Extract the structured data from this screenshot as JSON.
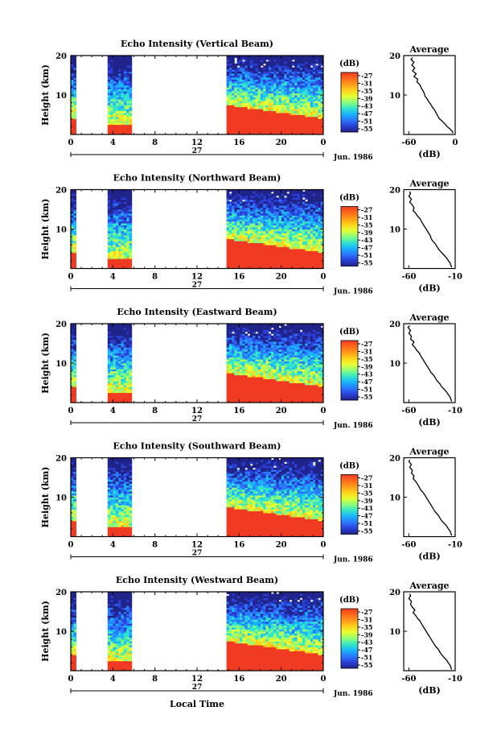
{
  "figure": {
    "xlabel": "Local Time",
    "date_label": "Jun. 1986",
    "day_label": "27",
    "colorbar_unit": "(dB)",
    "colorbar_ticks": [
      "-27",
      "-31",
      "-35",
      "-39",
      "-43",
      "-47",
      "-51",
      "-55"
    ],
    "colorbar_colors": [
      "#f03a22",
      "#ff6a1a",
      "#ff9a1a",
      "#ffd21a",
      "#e6ff33",
      "#8cff7a",
      "#33e6c8",
      "#1ab4ff",
      "#2a78ff",
      "#2a3fd6",
      "#20248a"
    ],
    "colors": {
      "low": "#20248a",
      "mid": "#33e6c8",
      "high": "#f03a22"
    }
  },
  "chart_data": [
    {
      "type": "heatmap",
      "title": "Echo Intensity (Vertical Beam)",
      "xlabel": "",
      "ylabel": "Height (km)",
      "x_ticks": [
        "0",
        "4",
        "8",
        "12",
        "16",
        "20",
        "0"
      ],
      "y_ticks": [
        "20",
        "10"
      ],
      "xlim": [
        0,
        24
      ],
      "ylim": [
        0,
        20
      ],
      "unit": "dB",
      "data_segments_hours": [
        [
          0,
          0.5
        ],
        [
          3.5,
          5.8
        ],
        [
          14.8,
          24
        ]
      ],
      "average_profile": {
        "title": "Average",
        "xlabel": "(dB)",
        "x_ticks": [
          "-60",
          "0"
        ],
        "y_ticks": [
          "20",
          "10"
        ],
        "xlim": [
          -70,
          0
        ],
        "x": [
          -58,
          -60,
          -56,
          -59,
          -55,
          -58,
          -53,
          -56,
          -51,
          -52,
          -48,
          -46,
          -44,
          -42,
          -41,
          -38,
          -36,
          -33,
          -31,
          -28,
          -26,
          -24,
          -22,
          -18,
          -14,
          -11,
          -7,
          -4,
          -3
        ],
        "y": [
          19.5,
          19,
          18.3,
          17.6,
          16.8,
          16.1,
          15.4,
          14.7,
          14,
          13.3,
          12.6,
          11.8,
          11.1,
          10.4,
          9.7,
          9,
          8.3,
          7.6,
          6.9,
          6.2,
          5.5,
          4.8,
          4.1,
          3.4,
          2.7,
          2,
          1.4,
          0.8,
          0.3
        ]
      }
    },
    {
      "type": "heatmap",
      "title": "Echo Intensity (Northward Beam)",
      "xlabel": "",
      "ylabel": "Height (km)",
      "x_ticks": [
        "0",
        "4",
        "8",
        "12",
        "16",
        "20",
        "0"
      ],
      "y_ticks": [
        "20",
        "10"
      ],
      "xlim": [
        0,
        24
      ],
      "ylim": [
        0,
        20
      ],
      "unit": "dB",
      "data_segments_hours": [
        [
          0,
          0.5
        ],
        [
          3.5,
          5.8
        ],
        [
          14.8,
          24
        ]
      ],
      "average_profile": {
        "title": "Average",
        "xlabel": "(dB)",
        "x_ticks": [
          "-60",
          "-10"
        ],
        "y_ticks": [
          "20",
          "10"
        ],
        "xlim": [
          -65,
          -5
        ],
        "x": [
          -58,
          -57,
          -59,
          -56,
          -58,
          -55,
          -53,
          -54,
          -51,
          -49,
          -46,
          -44,
          -42,
          -40,
          -38,
          -36,
          -34,
          -33,
          -31,
          -28,
          -26,
          -24,
          -21,
          -18,
          -15,
          -13,
          -11,
          -10,
          -9
        ],
        "y": [
          19.5,
          19,
          18.3,
          17.6,
          16.8,
          16.1,
          15.4,
          14.7,
          14,
          13.3,
          12.6,
          11.8,
          11.1,
          10.4,
          9.7,
          9,
          8.3,
          7.6,
          6.9,
          6.2,
          5.5,
          4.8,
          4.1,
          3.4,
          2.7,
          2,
          1.4,
          0.8,
          0.3
        ]
      }
    },
    {
      "type": "heatmap",
      "title": "Echo Intensity (Eastward Beam)",
      "xlabel": "",
      "ylabel": "Height (km)",
      "x_ticks": [
        "0",
        "4",
        "8",
        "12",
        "16",
        "20",
        "0"
      ],
      "y_ticks": [
        "20",
        "10"
      ],
      "xlim": [
        0,
        24
      ],
      "ylim": [
        0,
        20
      ],
      "unit": "dB",
      "data_segments_hours": [
        [
          0,
          0.5
        ],
        [
          3.5,
          5.8
        ],
        [
          14.8,
          24
        ]
      ],
      "average_profile": {
        "title": "Average",
        "xlabel": "(dB)",
        "x_ticks": [
          "-60",
          "-10"
        ],
        "y_ticks": [
          "20",
          "10"
        ],
        "xlim": [
          -65,
          -5
        ],
        "x": [
          -58,
          -60,
          -57,
          -59,
          -56,
          -57,
          -53,
          -55,
          -52,
          -50,
          -47,
          -45,
          -43,
          -41,
          -39,
          -37,
          -35,
          -33,
          -30,
          -28,
          -26,
          -23,
          -21,
          -18,
          -15,
          -13,
          -11,
          -10,
          -9
        ],
        "y": [
          19.5,
          19,
          18.3,
          17.6,
          16.8,
          16.1,
          15.4,
          14.7,
          14,
          13.3,
          12.6,
          11.8,
          11.1,
          10.4,
          9.7,
          9,
          8.3,
          7.6,
          6.9,
          6.2,
          5.5,
          4.8,
          4.1,
          3.4,
          2.7,
          2,
          1.4,
          0.8,
          0.3
        ]
      }
    },
    {
      "type": "heatmap",
      "title": "Echo Intensity (Southward Beam)",
      "xlabel": "",
      "ylabel": "Height (km)",
      "x_ticks": [
        "0",
        "4",
        "8",
        "12",
        "16",
        "20",
        "0"
      ],
      "y_ticks": [
        "20",
        "10"
      ],
      "xlim": [
        0,
        24
      ],
      "ylim": [
        0,
        20
      ],
      "unit": "dB",
      "data_segments_hours": [
        [
          0,
          0.5
        ],
        [
          3.5,
          5.8
        ],
        [
          14.8,
          24
        ]
      ],
      "average_profile": {
        "title": "Average",
        "xlabel": "(dB)",
        "x_ticks": [
          "-60",
          "-10"
        ],
        "y_ticks": [
          "20",
          "10"
        ],
        "xlim": [
          -65,
          -5
        ],
        "x": [
          -58,
          -59,
          -56,
          -58,
          -55,
          -56,
          -53,
          -54,
          -51,
          -49,
          -47,
          -45,
          -42,
          -40,
          -38,
          -36,
          -34,
          -32,
          -30,
          -28,
          -25,
          -23,
          -21,
          -18,
          -15,
          -13,
          -11,
          -10,
          -9
        ],
        "y": [
          19.5,
          19,
          18.3,
          17.6,
          16.8,
          16.1,
          15.4,
          14.7,
          14,
          13.3,
          12.6,
          11.8,
          11.1,
          10.4,
          9.7,
          9,
          8.3,
          7.6,
          6.9,
          6.2,
          5.5,
          4.8,
          4.1,
          3.4,
          2.7,
          2,
          1.4,
          0.8,
          0.3
        ]
      }
    },
    {
      "type": "heatmap",
      "title": "Echo Intensity (Westward Beam)",
      "xlabel": "",
      "ylabel": "Height (km)",
      "x_ticks": [
        "0",
        "4",
        "8",
        "12",
        "16",
        "20",
        "0"
      ],
      "y_ticks": [
        "20",
        "10"
      ],
      "xlim": [
        0,
        24
      ],
      "ylim": [
        0,
        20
      ],
      "unit": "dB",
      "data_segments_hours": [
        [
          0,
          0.5
        ],
        [
          3.5,
          5.8
        ],
        [
          14.8,
          24
        ]
      ],
      "average_profile": {
        "title": "Average",
        "xlabel": "(dB)",
        "x_ticks": [
          "-60",
          "-10"
        ],
        "y_ticks": [
          "20",
          "10"
        ],
        "xlim": [
          -65,
          -5
        ],
        "x": [
          -58,
          -57,
          -59,
          -56,
          -57,
          -55,
          -52,
          -54,
          -51,
          -49,
          -46,
          -44,
          -42,
          -40,
          -38,
          -36,
          -34,
          -32,
          -30,
          -28,
          -25,
          -23,
          -21,
          -18,
          -15,
          -13,
          -11,
          -10,
          -9
        ],
        "y": [
          19.5,
          19,
          18.3,
          17.6,
          16.8,
          16.1,
          15.4,
          14.7,
          14,
          13.3,
          12.6,
          11.8,
          11.1,
          10.4,
          9.7,
          9,
          8.3,
          7.6,
          6.9,
          6.2,
          5.5,
          4.8,
          4.1,
          3.4,
          2.7,
          2,
          1.4,
          0.8,
          0.3
        ]
      }
    }
  ]
}
